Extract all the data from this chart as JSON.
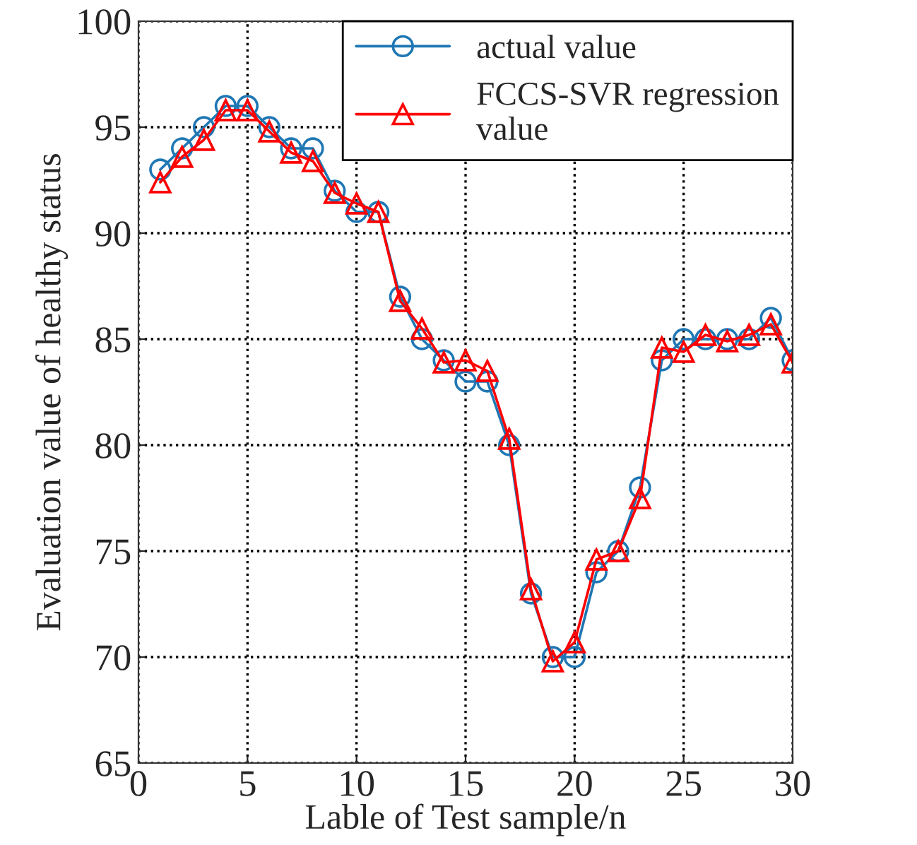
{
  "chart_data": {
    "type": "line",
    "xlabel": "Lable of Test sample/n",
    "ylabel": "Evaluation value of healthy status",
    "x": [
      1,
      2,
      3,
      4,
      5,
      6,
      7,
      8,
      9,
      10,
      11,
      12,
      13,
      14,
      15,
      16,
      17,
      18,
      19,
      20,
      21,
      22,
      23,
      24,
      25,
      26,
      27,
      28,
      29,
      30
    ],
    "series": [
      {
        "name": "actual value",
        "color": "#1f77b4",
        "marker": "circle",
        "values": [
          93,
          94,
          95,
          96,
          96,
          95,
          94,
          94,
          92,
          91,
          91,
          87,
          85,
          84,
          83,
          83,
          80,
          73,
          70,
          70,
          74,
          75,
          78,
          84,
          85,
          85,
          85,
          85,
          86,
          84
        ]
      },
      {
        "name": "FCCS-SVR regression\nvalue",
        "color": "#ff0000",
        "marker": "triangle",
        "values": [
          92.4,
          93.6,
          94.4,
          95.8,
          95.8,
          94.8,
          93.8,
          93.4,
          91.9,
          91.4,
          91,
          86.8,
          85.5,
          83.9,
          84,
          83.5,
          80.3,
          73.2,
          69.8,
          70.7,
          74.6,
          75,
          77.5,
          84.6,
          84.4,
          85.2,
          84.9,
          85.2,
          85.7,
          83.9
        ]
      }
    ],
    "xlim": [
      0,
      30
    ],
    "xticks": [
      0,
      5,
      10,
      15,
      20,
      25,
      30
    ],
    "ylim": [
      65,
      100
    ],
    "yticks": [
      65,
      70,
      75,
      80,
      85,
      90,
      95,
      100
    ],
    "grid": true,
    "legend": "top right",
    "line_style": "solid"
  }
}
